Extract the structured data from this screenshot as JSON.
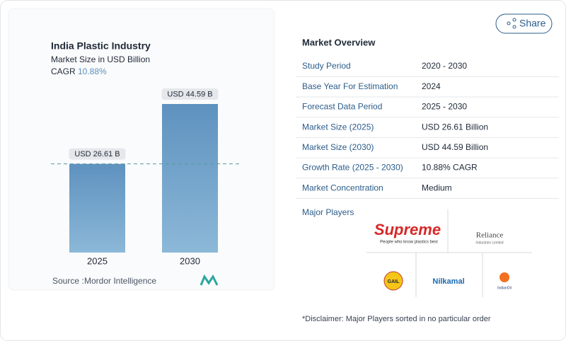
{
  "share": "Share",
  "chart_data": {
    "type": "bar",
    "title": "India Plastic Industry",
    "subtitle": "Market Size in USD Billion",
    "cagr_label": "CAGR",
    "cagr": "10.88%",
    "categories": [
      "2025",
      "2030"
    ],
    "values": [
      26.61,
      44.59
    ],
    "value_labels": [
      "USD 26.61 B",
      "USD 44.59 B"
    ],
    "color": "#5d90bd",
    "source_label": "Source :",
    "source": "Mordor Intelligence"
  },
  "overview": {
    "title": "Market Overview",
    "rows": [
      [
        "Study Period",
        "2020 - 2030"
      ],
      [
        "Base Year For Estimation",
        "2024"
      ],
      [
        "Forecast Data Period",
        "2025 - 2030"
      ],
      [
        "Market Size (2025)",
        "USD 26.61 Billion"
      ],
      [
        "Market Size (2030)",
        "USD 44.59 Billion"
      ],
      [
        "Growth Rate (2025 - 2030)",
        "10.88% CAGR"
      ],
      [
        "Market Concentration",
        "Medium"
      ]
    ],
    "players_title": "Major Players",
    "players": [
      {
        "name": "Supreme",
        "tagline": "People who know plastics best"
      },
      {
        "name": "Reliance",
        "tagline": "Industries Limited"
      },
      {
        "name": "GAIL"
      },
      {
        "name": "Nilkamal"
      },
      {
        "name": "IndianOil"
      }
    ],
    "disclaimer": "*Disclaimer: Major Players sorted in no particular order"
  }
}
